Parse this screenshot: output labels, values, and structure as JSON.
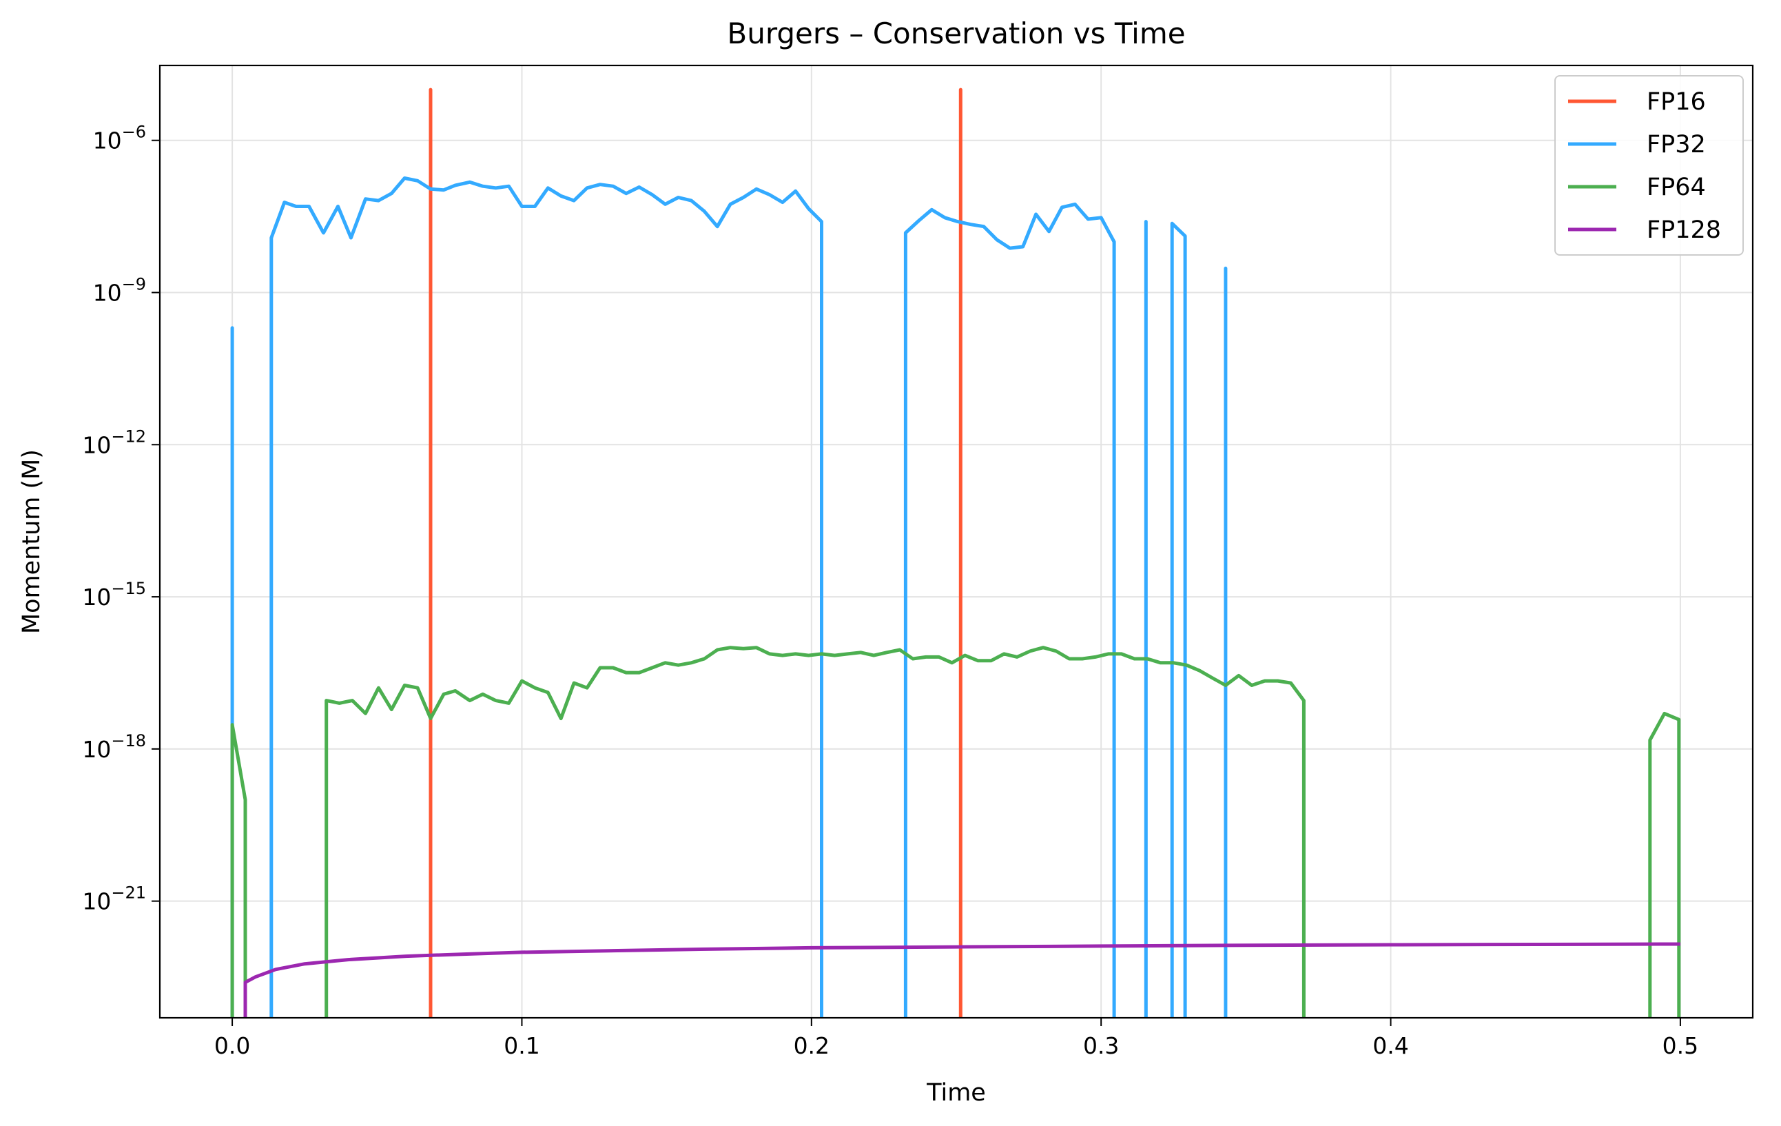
{
  "chart_data": {
    "type": "line",
    "title": "Burgers – Conservation vs Time",
    "xlabel": "Time",
    "ylabel": "Momentum (M)",
    "yscale": "log",
    "xlim": [
      -0.025,
      0.525
    ],
    "ylim": [
      5e-24,
      3e-05
    ],
    "x_ticks": [
      {
        "value": 0.0,
        "label": "0.0"
      },
      {
        "value": 0.1,
        "label": "0.1"
      },
      {
        "value": 0.2,
        "label": "0.2"
      },
      {
        "value": 0.3,
        "label": "0.3"
      },
      {
        "value": 0.4,
        "label": "0.4"
      },
      {
        "value": 0.5,
        "label": "0.5"
      }
    ],
    "y_ticks": [
      {
        "value": 1e-21,
        "base": "10",
        "exp": "−21"
      },
      {
        "value": 1e-18,
        "base": "10",
        "exp": "−18"
      },
      {
        "value": 1e-15,
        "base": "10",
        "exp": "−15"
      },
      {
        "value": 1e-12,
        "base": "10",
        "exp": "−12"
      },
      {
        "value": 1e-09,
        "base": "10",
        "exp": "−9"
      },
      {
        "value": 1e-06,
        "base": "10",
        "exp": "−6"
      }
    ],
    "grid": true,
    "legend_position": "top-right",
    "series": [
      {
        "name": "FP16",
        "color": "#ff5733",
        "segments": [
          [
            [
              0.0685,
              5e-24
            ],
            [
              0.0685,
              1e-05
            ],
            [
              0.0685,
              5e-24
            ]
          ],
          [
            [
              0.2515,
              5e-24
            ],
            [
              0.2515,
              1e-05
            ],
            [
              0.2515,
              5e-24
            ]
          ]
        ]
      },
      {
        "name": "FP32",
        "color": "#33aaff",
        "segments": [
          [
            [
              0.0,
              5e-24
            ],
            [
              0.0,
              2e-10
            ],
            [
              0.0,
              5e-24
            ]
          ],
          [
            [
              0.0135,
              5e-24
            ],
            [
              0.0135,
              1.2e-08
            ],
            [
              0.018,
              6e-08
            ],
            [
              0.022,
              5e-08
            ],
            [
              0.0265,
              5e-08
            ],
            [
              0.0315,
              1.5e-08
            ],
            [
              0.0365,
              5e-08
            ],
            [
              0.041,
              1.2e-08
            ],
            [
              0.046,
              7e-08
            ],
            [
              0.0505,
              6.5e-08
            ],
            [
              0.055,
              9e-08
            ],
            [
              0.0595,
              1.8e-07
            ],
            [
              0.064,
              1.6e-07
            ],
            [
              0.0685,
              1.1e-07
            ],
            [
              0.073,
              1.05e-07
            ],
            [
              0.077,
              1.3e-07
            ],
            [
              0.082,
              1.5e-07
            ],
            [
              0.0865,
              1.25e-07
            ],
            [
              0.091,
              1.15e-07
            ],
            [
              0.0955,
              1.25e-07
            ],
            [
              0.1,
              5e-08
            ],
            [
              0.1045,
              5e-08
            ],
            [
              0.109,
              1.15e-07
            ],
            [
              0.1135,
              8e-08
            ],
            [
              0.118,
              6.5e-08
            ],
            [
              0.1225,
              1.15e-07
            ],
            [
              0.127,
              1.35e-07
            ],
            [
              0.1315,
              1.25e-07
            ],
            [
              0.136,
              9e-08
            ],
            [
              0.1405,
              1.2e-07
            ],
            [
              0.145,
              8.5e-08
            ],
            [
              0.1495,
              5.5e-08
            ],
            [
              0.154,
              7.5e-08
            ],
            [
              0.1585,
              6.5e-08
            ],
            [
              0.163,
              4e-08
            ],
            [
              0.1675,
              2e-08
            ],
            [
              0.172,
              5.5e-08
            ],
            [
              0.1765,
              7.5e-08
            ],
            [
              0.181,
              1.1e-07
            ],
            [
              0.1855,
              8.5e-08
            ],
            [
              0.19,
              6e-08
            ],
            [
              0.1945,
              1e-07
            ],
            [
              0.199,
              4.5e-08
            ],
            [
              0.2035,
              2.5e-08
            ],
            [
              0.2035,
              5e-24
            ]
          ],
          [
            [
              0.2325,
              5e-24
            ],
            [
              0.2325,
              1.5e-08
            ],
            [
              0.237,
              2.6e-08
            ],
            [
              0.2415,
              4.3e-08
            ],
            [
              0.246,
              3e-08
            ],
            [
              0.2505,
              2.5e-08
            ],
            [
              0.255,
              2.2e-08
            ],
            [
              0.2595,
              2e-08
            ],
            [
              0.264,
              1.1e-08
            ],
            [
              0.2685,
              7.5e-09
            ],
            [
              0.273,
              8e-09
            ],
            [
              0.2775,
              3.5e-08
            ],
            [
              0.282,
              1.6e-08
            ],
            [
              0.2865,
              4.8e-08
            ],
            [
              0.291,
              5.5e-08
            ],
            [
              0.2955,
              2.8e-08
            ],
            [
              0.3,
              3e-08
            ],
            [
              0.3045,
              1e-08
            ],
            [
              0.3045,
              5e-24
            ]
          ],
          [
            [
              0.3155,
              5e-24
            ],
            [
              0.3155,
              2.5e-08
            ],
            [
              0.3155,
              5e-24
            ]
          ],
          [
            [
              0.3245,
              5e-24
            ],
            [
              0.3245,
              2.3e-08
            ],
            [
              0.329,
              1.3e-08
            ],
            [
              0.329,
              5e-24
            ]
          ],
          [
            [
              0.343,
              5e-24
            ],
            [
              0.343,
              3e-09
            ],
            [
              0.343,
              5e-24
            ]
          ]
        ]
      },
      {
        "name": "FP64",
        "color": "#4caf50",
        "segments": [
          [
            [
              0.0,
              5e-24
            ],
            [
              0.0,
              3e-18
            ],
            [
              0.0045,
              1e-19
            ],
            [
              0.0045,
              5e-24
            ]
          ],
          [
            [
              0.0325,
              5e-24
            ],
            [
              0.0325,
              9e-18
            ],
            [
              0.037,
              8e-18
            ],
            [
              0.0415,
              9e-18
            ],
            [
              0.046,
              5e-18
            ],
            [
              0.0505,
              1.6e-17
            ],
            [
              0.055,
              6e-18
            ],
            [
              0.0595,
              1.8e-17
            ],
            [
              0.064,
              1.6e-17
            ],
            [
              0.0685,
              4e-18
            ],
            [
              0.073,
              1.2e-17
            ],
            [
              0.077,
              1.4e-17
            ],
            [
              0.082,
              9e-18
            ],
            [
              0.0865,
              1.2e-17
            ],
            [
              0.091,
              9e-18
            ],
            [
              0.0955,
              8e-18
            ],
            [
              0.1,
              2.2e-17
            ],
            [
              0.1045,
              1.6e-17
            ],
            [
              0.109,
              1.3e-17
            ],
            [
              0.1135,
              4e-18
            ],
            [
              0.118,
              2e-17
            ],
            [
              0.1225,
              1.6e-17
            ],
            [
              0.127,
              4e-17
            ],
            [
              0.1315,
              4e-17
            ],
            [
              0.136,
              3.2e-17
            ],
            [
              0.1405,
              3.2e-17
            ],
            [
              0.145,
              4e-17
            ],
            [
              0.1495,
              5e-17
            ],
            [
              0.154,
              4.5e-17
            ],
            [
              0.1585,
              5e-17
            ],
            [
              0.163,
              6e-17
            ],
            [
              0.1675,
              9e-17
            ],
            [
              0.172,
              1e-16
            ],
            [
              0.1765,
              9.5e-17
            ],
            [
              0.181,
              1e-16
            ],
            [
              0.1855,
              7.5e-17
            ],
            [
              0.19,
              7e-17
            ],
            [
              0.1945,
              7.5e-17
            ],
            [
              0.199,
              7e-17
            ],
            [
              0.2035,
              7.5e-17
            ],
            [
              0.208,
              7e-17
            ],
            [
              0.2125,
              7.5e-17
            ],
            [
              0.217,
              8e-17
            ],
            [
              0.2215,
              7e-17
            ],
            [
              0.226,
              8e-17
            ],
            [
              0.2305,
              9e-17
            ],
            [
              0.235,
              6e-17
            ],
            [
              0.2395,
              6.5e-17
            ],
            [
              0.244,
              6.5e-17
            ],
            [
              0.2485,
              5e-17
            ],
            [
              0.253,
              7e-17
            ],
            [
              0.2575,
              5.5e-17
            ],
            [
              0.262,
              5.5e-17
            ],
            [
              0.2665,
              7.5e-17
            ],
            [
              0.271,
              6.5e-17
            ],
            [
              0.2755,
              8.5e-17
            ],
            [
              0.28,
              1e-16
            ],
            [
              0.2845,
              8.5e-17
            ],
            [
              0.289,
              6e-17
            ],
            [
              0.2935,
              6e-17
            ],
            [
              0.298,
              6.5e-17
            ],
            [
              0.3025,
              7.5e-17
            ],
            [
              0.307,
              7.5e-17
            ],
            [
              0.3115,
              6e-17
            ],
            [
              0.316,
              6e-17
            ],
            [
              0.3205,
              5e-17
            ],
            [
              0.325,
              5e-17
            ],
            [
              0.3295,
              4.5e-17
            ],
            [
              0.334,
              3.5e-17
            ],
            [
              0.3385,
              2.5e-17
            ],
            [
              0.343,
              1.8e-17
            ],
            [
              0.3475,
              2.8e-17
            ],
            [
              0.352,
              1.8e-17
            ],
            [
              0.3565,
              2.2e-17
            ],
            [
              0.361,
              2.2e-17
            ],
            [
              0.3655,
              2e-17
            ],
            [
              0.37,
              9e-18
            ],
            [
              0.37,
              5e-24
            ]
          ],
          [
            [
              0.4895,
              5e-24
            ],
            [
              0.4895,
              1.5e-18
            ],
            [
              0.4945,
              5e-18
            ],
            [
              0.4995,
              3.8e-18
            ],
            [
              0.4995,
              5e-24
            ]
          ]
        ]
      },
      {
        "name": "FP128",
        "color": "#9c27b0",
        "segments": [
          [
            [
              0.0045,
              5e-24
            ],
            [
              0.0045,
              2.5e-23
            ],
            [
              0.008,
              3.2e-23
            ],
            [
              0.015,
              4.5e-23
            ],
            [
              0.025,
              5.8e-23
            ],
            [
              0.04,
              7e-23
            ],
            [
              0.06,
              8.2e-23
            ],
            [
              0.08,
              9e-23
            ],
            [
              0.1,
              9.8e-23
            ],
            [
              0.13,
              1.05e-22
            ],
            [
              0.16,
              1.12e-22
            ],
            [
              0.2,
              1.2e-22
            ],
            [
              0.25,
              1.25e-22
            ],
            [
              0.3,
              1.3e-22
            ],
            [
              0.35,
              1.35e-22
            ],
            [
              0.4,
              1.38e-22
            ],
            [
              0.45,
              1.4e-22
            ],
            [
              0.5,
              1.42e-22
            ]
          ]
        ]
      }
    ]
  }
}
